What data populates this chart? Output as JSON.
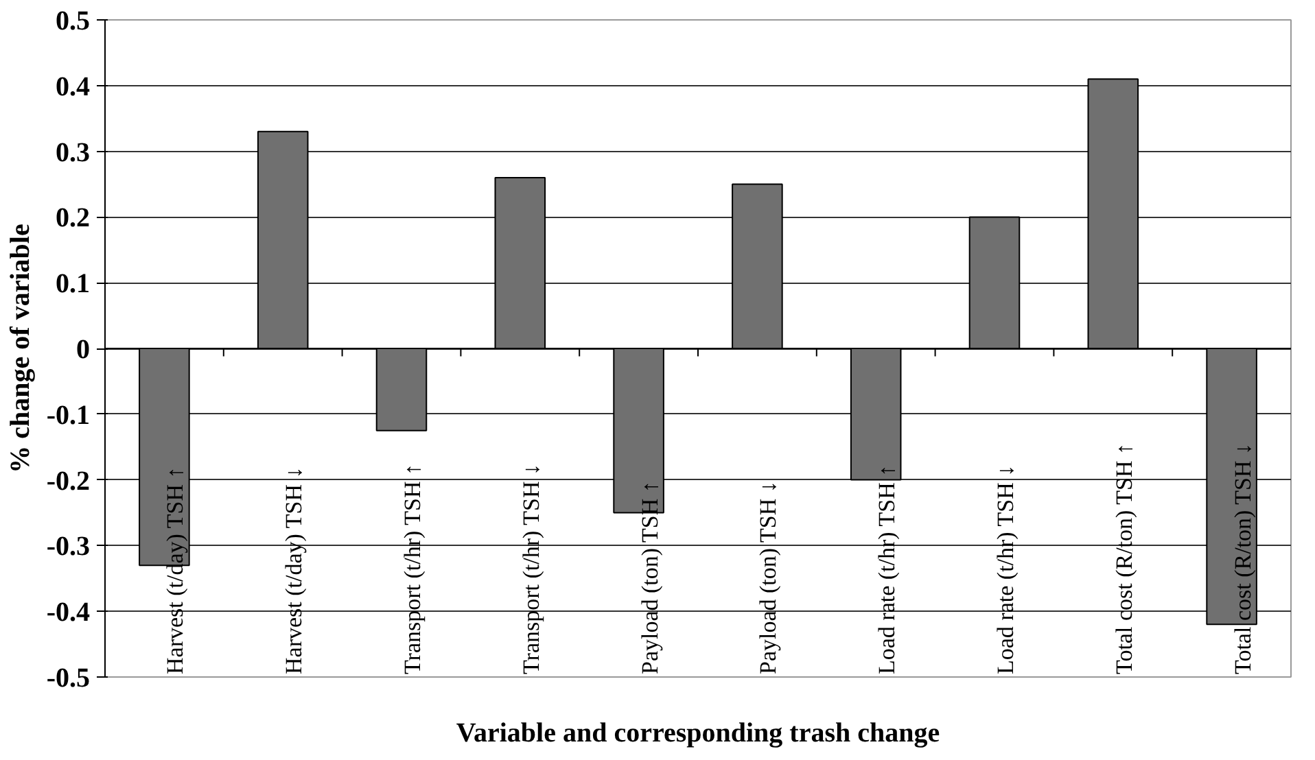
{
  "chart_data": {
    "type": "bar",
    "categories": [
      "Harvest (t/day) TSH ↑",
      "Harvest (t/day) TSH ↓",
      "Transport (t/hr) TSH ↑",
      "Transport (t/hr) TSH ↓",
      "Payload (ton) TSH ↑",
      "Payload (ton) TSH ↓",
      "Load rate (t/hr) TSH ↑",
      "Load rate (t/hr) TSH ↓",
      "Total cost (R/ton) TSH ↑",
      "Total cost (R/ton) TSH ↓"
    ],
    "values": [
      -0.33,
      0.33,
      -0.125,
      0.26,
      -0.25,
      0.25,
      -0.2,
      0.2,
      0.41,
      -0.42
    ],
    "color": "#707070",
    "ylim": [
      -0.5,
      0.5
    ],
    "yticks": [
      {
        "value": -0.5,
        "label": "-0.5"
      },
      {
        "value": -0.4,
        "label": "-0.4"
      },
      {
        "value": -0.3,
        "label": "-0.3"
      },
      {
        "value": -0.2,
        "label": "-0.2"
      },
      {
        "value": -0.1,
        "label": "-0.1"
      },
      0,
      0.1,
      0.2,
      0.3,
      0.4,
      0.5
    ],
    "xlabel": "Variable and corresponding trash change",
    "ylabel": "% change of variable",
    "grid": "y"
  }
}
